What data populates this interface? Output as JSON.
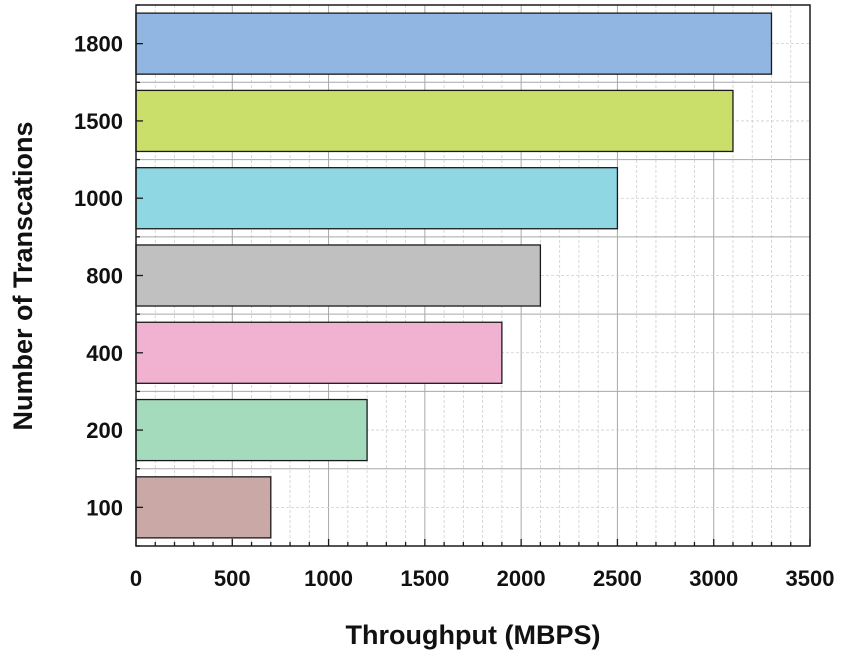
{
  "chart_data": {
    "type": "bar",
    "orientation": "horizontal",
    "categories": [
      "100",
      "200",
      "400",
      "800",
      "1000",
      "1500",
      "1800"
    ],
    "values": [
      700,
      1200,
      1900,
      2100,
      2500,
      3100,
      3300
    ],
    "bar_colors": [
      "#c9a8a5",
      "#a5dbbd",
      "#f1b2d1",
      "#c0c0c0",
      "#8fd7e3",
      "#c9df6a",
      "#91b6e1"
    ],
    "xlabel": "Throughput (MBPS)",
    "ylabel": "Number of Transcations",
    "xlim": [
      0,
      3500
    ],
    "xticks": [
      "0",
      "500",
      "1000",
      "1500",
      "2000",
      "2500",
      "3000",
      "3500"
    ],
    "grid": true,
    "legend": "none"
  }
}
